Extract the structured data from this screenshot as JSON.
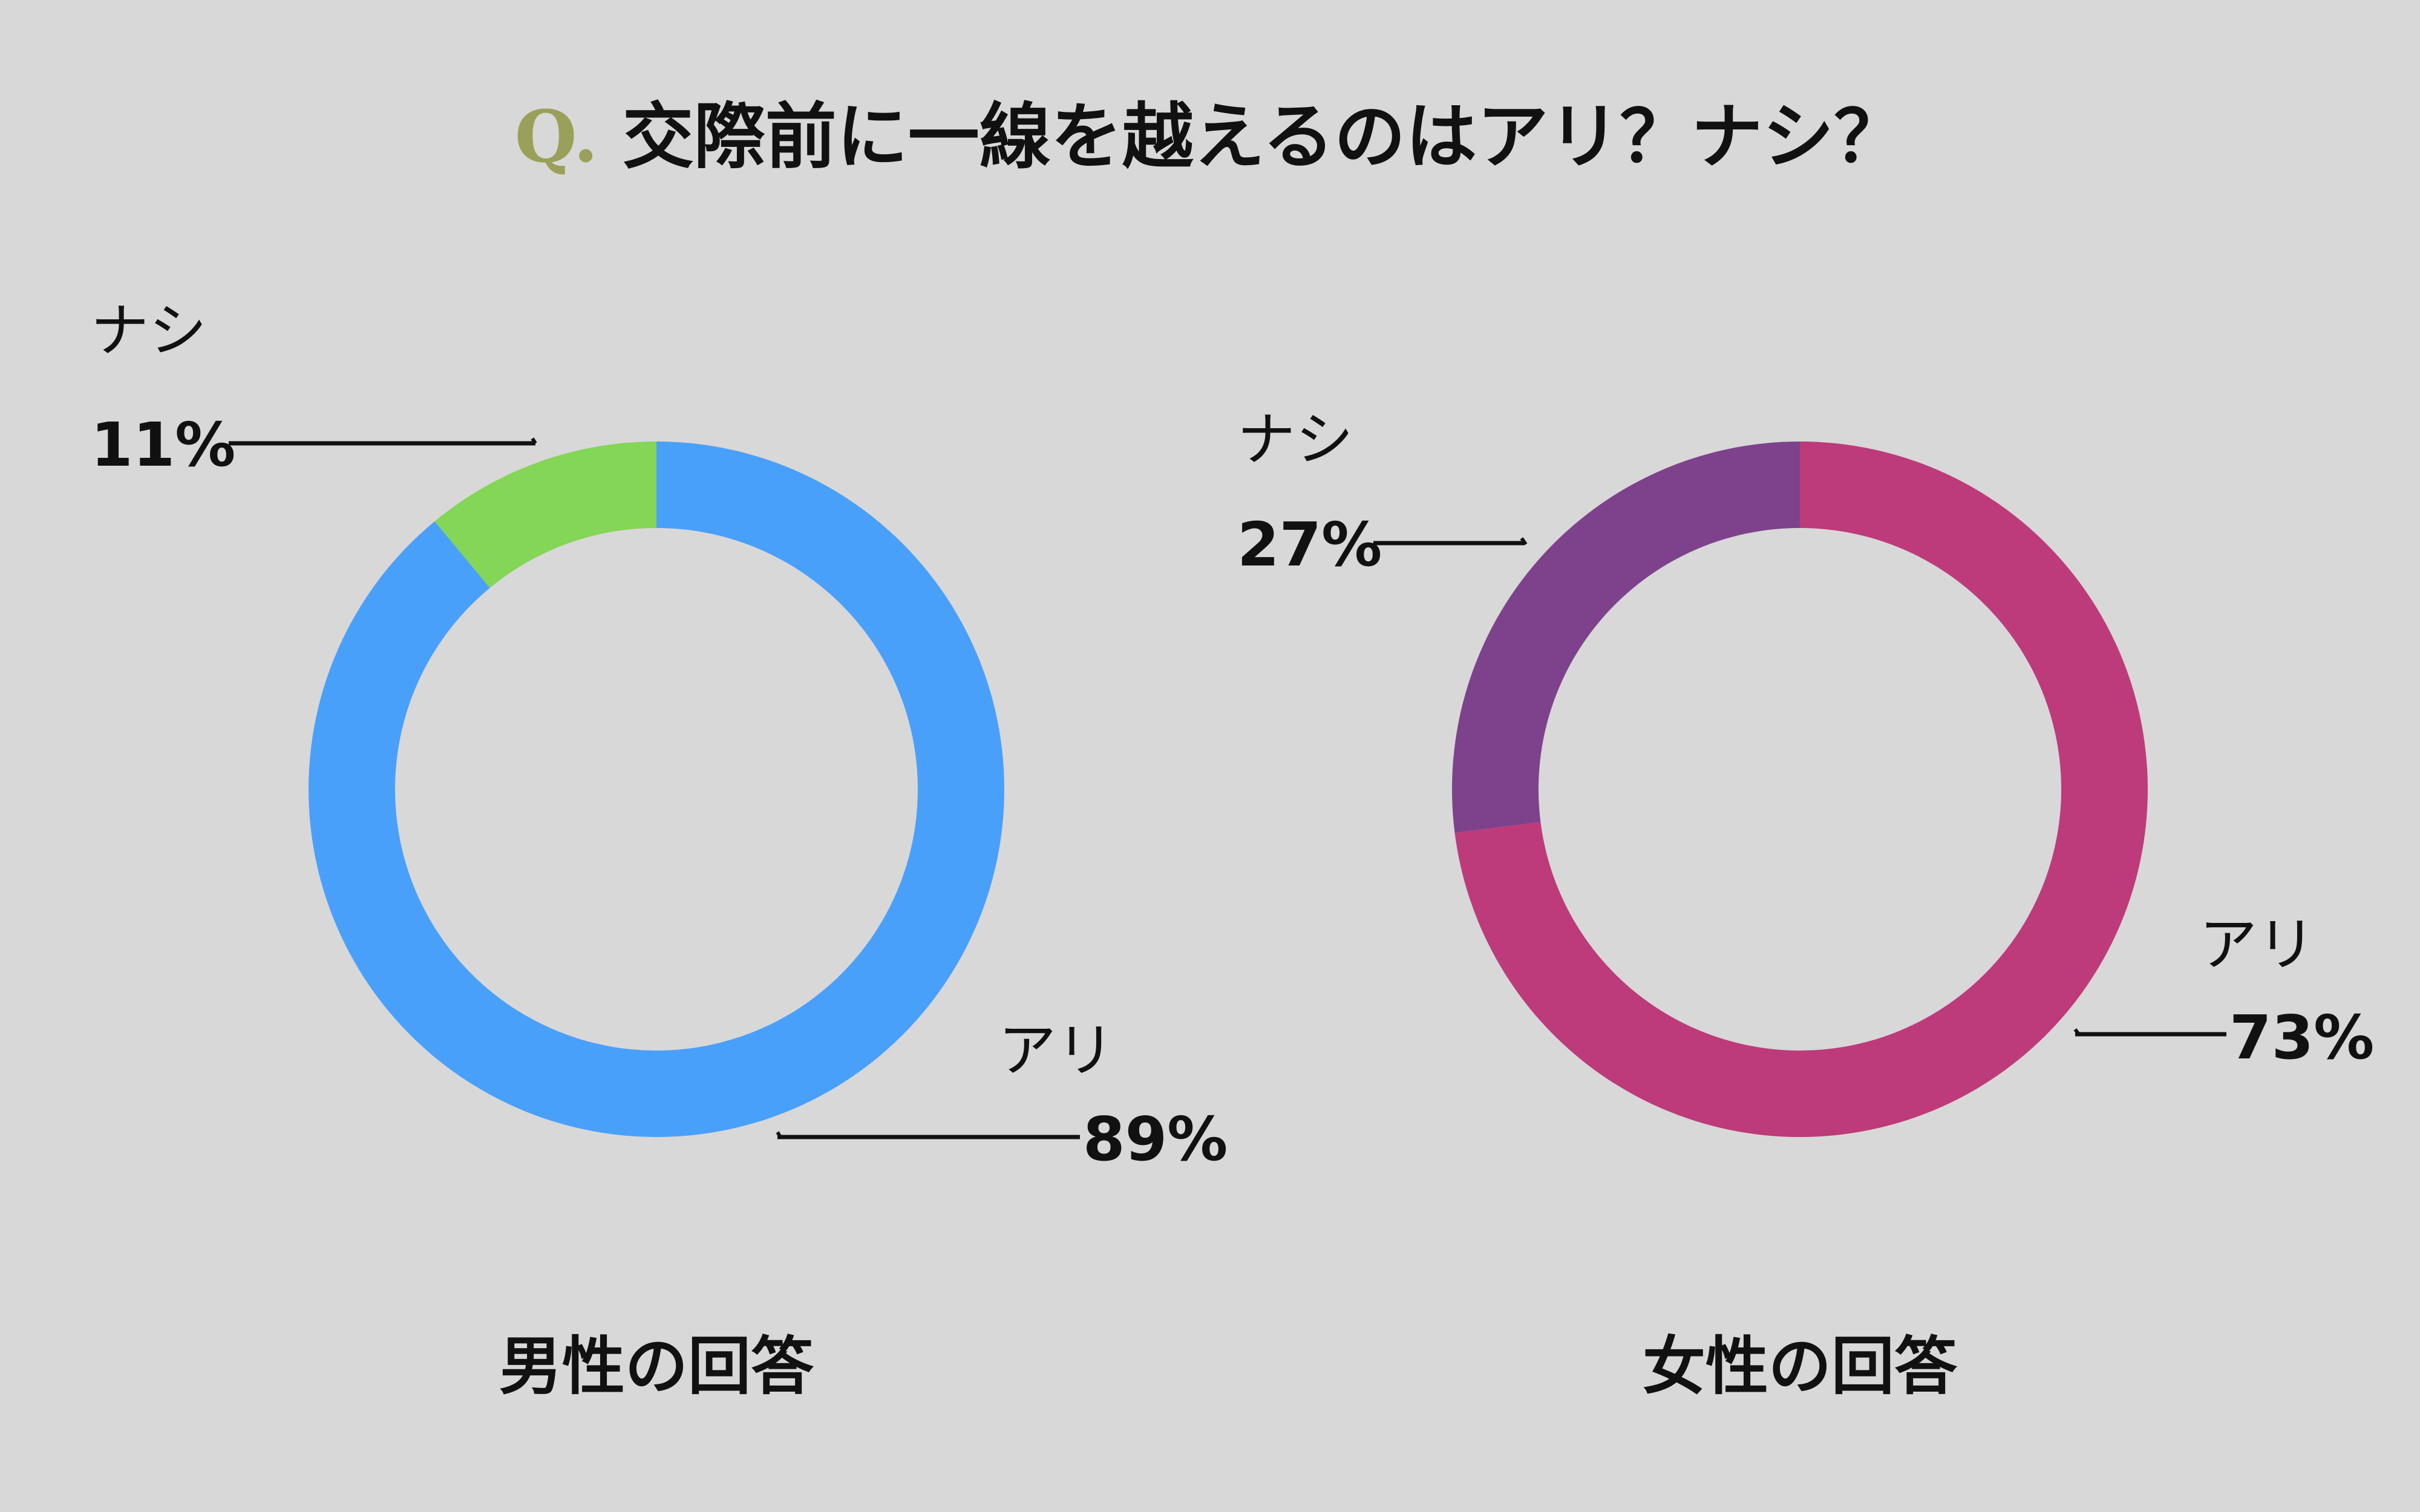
{
  "question_mark": "Q.",
  "title": "交際前に一線を越えるのはアリ？ナシ？",
  "chart_data": [
    {
      "type": "pie",
      "variant": "donut",
      "caption": "男性の回答",
      "slices": [
        {
          "label": "ナシ",
          "value": 11,
          "value_label": "11%",
          "color": "#83d656"
        },
        {
          "label": "アリ",
          "value": 89,
          "value_label": "89%",
          "color": "#49a0fa"
        }
      ]
    },
    {
      "type": "pie",
      "variant": "donut",
      "caption": "女性の回答",
      "slices": [
        {
          "label": "ナシ",
          "value": 27,
          "value_label": "27%",
          "color": "#7e428c"
        },
        {
          "label": "アリ",
          "value": 73,
          "value_label": "73%",
          "color": "#bd3b7a"
        }
      ]
    }
  ],
  "colors": {
    "background": "#d8d8d8",
    "q_accent": "#9aa05a",
    "text": "#111111"
  }
}
